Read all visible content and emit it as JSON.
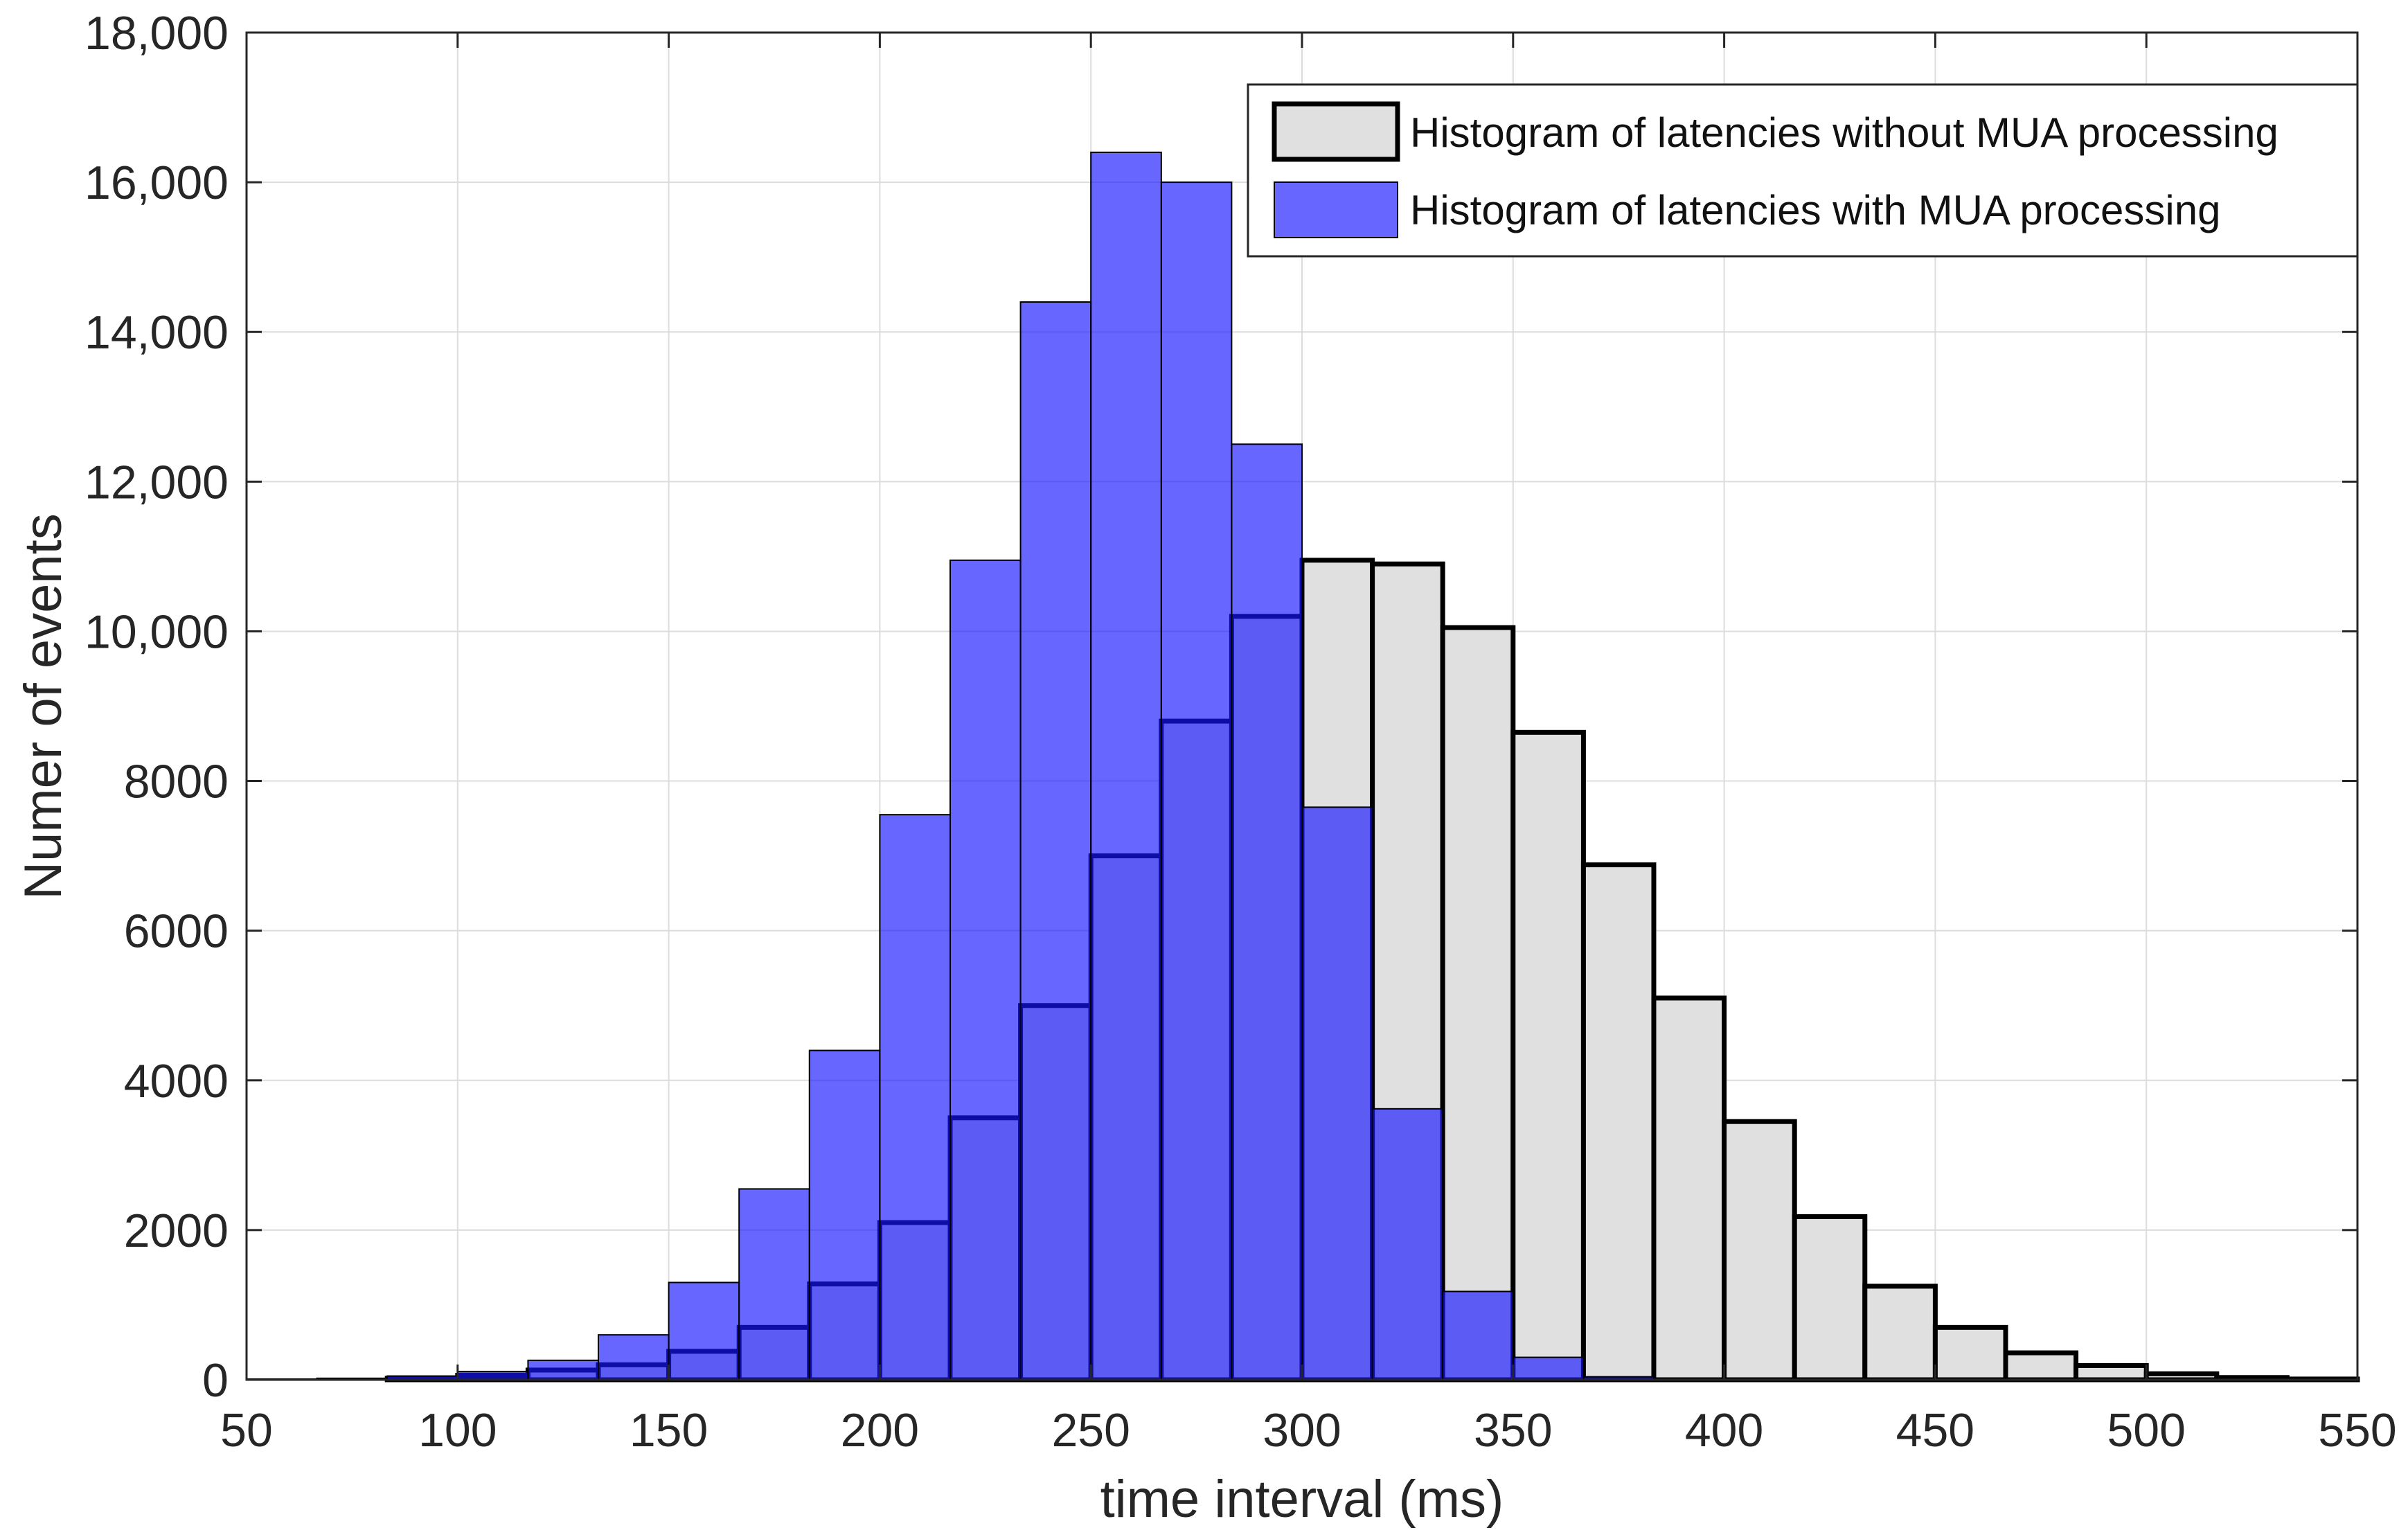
{
  "chart_data": {
    "type": "bar",
    "subtype": "overlaid-histogram",
    "title": "",
    "xlabel": "time interval (ms)",
    "ylabel": "Numer of events",
    "xlim": [
      50,
      550
    ],
    "ylim": [
      0,
      18000
    ],
    "grid": true,
    "legend_position": "top-right",
    "bin_width": 16.67,
    "bin_edges": [
      50,
      66.67,
      83.33,
      100,
      116.67,
      133.33,
      150,
      166.67,
      183.33,
      200,
      216.67,
      233.33,
      250,
      266.67,
      283.33,
      300,
      316.67,
      333.33,
      350,
      366.67,
      383.33,
      400,
      416.67,
      433.33,
      450,
      466.67,
      483.33,
      500,
      516.67,
      533.33,
      550
    ],
    "x_ticks": [
      50,
      100,
      150,
      200,
      250,
      300,
      350,
      400,
      450,
      500,
      550
    ],
    "x_tick_labels": [
      "50",
      "100",
      "150",
      "200",
      "250",
      "300",
      "350",
      "400",
      "450",
      "500",
      "550"
    ],
    "y_ticks": [
      0,
      2000,
      4000,
      6000,
      8000,
      10000,
      12000,
      14000,
      16000,
      18000
    ],
    "y_tick_labels": [
      "0",
      "2000",
      "4000",
      "6000",
      "8000",
      "10,000",
      "12,000",
      "14,000",
      "16,000",
      "18,000"
    ],
    "series": [
      {
        "name": "Histogram of latencies without MUA processing",
        "fill": "#e0e0e0",
        "stroke": "#000000",
        "fill_opacity": 1,
        "values": [
          0,
          0,
          20,
          60,
          130,
          200,
          380,
          700,
          1280,
          2100,
          3500,
          5000,
          7000,
          8800,
          10200,
          10950,
          10900,
          10050,
          8650,
          6880,
          5100,
          3450,
          2180,
          1250,
          700,
          360,
          190,
          80,
          30,
          10
        ]
      },
      {
        "name": "Histogram of latencies with MUA processing",
        "fill": "#1515ff",
        "stroke": "#000000",
        "fill_opacity": 0.65,
        "values": [
          10,
          20,
          50,
          110,
          260,
          600,
          1300,
          2550,
          4400,
          7550,
          10950,
          14400,
          16400,
          16000,
          12500,
          7650,
          3620,
          1180,
          300,
          40,
          5,
          0,
          0,
          0,
          0,
          0,
          0,
          0,
          0,
          0
        ]
      }
    ]
  }
}
